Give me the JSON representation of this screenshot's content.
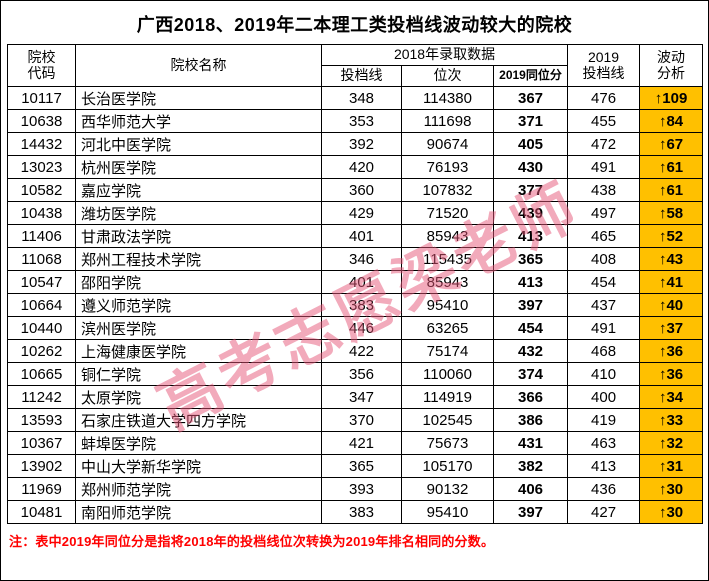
{
  "title": "广西2018、2019年二本理工类投档线波动较大的院校",
  "watermark": "高考志愿梁老师",
  "note": "注：表中2019年同位分是指将2018年的投档线位次转换为2019年排名相同的分数。",
  "colors": {
    "highlight": "#FFC000",
    "note_text": "#FF0000",
    "watermark": "#E65578",
    "border": "#000000"
  },
  "table": {
    "headers": {
      "code": "院校\n代码",
      "name": "院校名称",
      "group2018": "2018年录取数据",
      "line2018": "投档线",
      "rank": "位次",
      "equiv": "2019同位分",
      "line2019": "2019\n投档线",
      "fluct": "波动\n分析"
    },
    "rows": [
      {
        "code": "10117",
        "name": "长治医学院",
        "line2018": "348",
        "rank": "114380",
        "equiv": "367",
        "line2019": "476",
        "delta": "↑109"
      },
      {
        "code": "10638",
        "name": "西华师范大学",
        "line2018": "353",
        "rank": "111698",
        "equiv": "371",
        "line2019": "455",
        "delta": "↑84"
      },
      {
        "code": "14432",
        "name": "河北中医学院",
        "line2018": "392",
        "rank": "90674",
        "equiv": "405",
        "line2019": "472",
        "delta": "↑67"
      },
      {
        "code": "13023",
        "name": "杭州医学院",
        "line2018": "420",
        "rank": "76193",
        "equiv": "430",
        "line2019": "491",
        "delta": "↑61"
      },
      {
        "code": "10582",
        "name": "嘉应学院",
        "line2018": "360",
        "rank": "107832",
        "equiv": "377",
        "line2019": "438",
        "delta": "↑61"
      },
      {
        "code": "10438",
        "name": "潍坊医学院",
        "line2018": "429",
        "rank": "71520",
        "equiv": "439",
        "line2019": "497",
        "delta": "↑58"
      },
      {
        "code": "11406",
        "name": "甘肃政法学院",
        "line2018": "401",
        "rank": "85943",
        "equiv": "413",
        "line2019": "465",
        "delta": "↑52"
      },
      {
        "code": "11068",
        "name": "郑州工程技术学院",
        "line2018": "346",
        "rank": "115435",
        "equiv": "365",
        "line2019": "408",
        "delta": "↑43"
      },
      {
        "code": "10547",
        "name": "邵阳学院",
        "line2018": "401",
        "rank": "85943",
        "equiv": "413",
        "line2019": "454",
        "delta": "↑41"
      },
      {
        "code": "10664",
        "name": "遵义师范学院",
        "line2018": "383",
        "rank": "95410",
        "equiv": "397",
        "line2019": "437",
        "delta": "↑40"
      },
      {
        "code": "10440",
        "name": "滨州医学院",
        "line2018": "446",
        "rank": "63265",
        "equiv": "454",
        "line2019": "491",
        "delta": "↑37"
      },
      {
        "code": "10262",
        "name": "上海健康医学院",
        "line2018": "422",
        "rank": "75174",
        "equiv": "432",
        "line2019": "468",
        "delta": "↑36"
      },
      {
        "code": "10665",
        "name": "铜仁学院",
        "line2018": "356",
        "rank": "110060",
        "equiv": "374",
        "line2019": "410",
        "delta": "↑36"
      },
      {
        "code": "11242",
        "name": "太原学院",
        "line2018": "347",
        "rank": "114919",
        "equiv": "366",
        "line2019": "400",
        "delta": "↑34"
      },
      {
        "code": "13593",
        "name": "石家庄铁道大学四方学院",
        "line2018": "370",
        "rank": "102545",
        "equiv": "386",
        "line2019": "419",
        "delta": "↑33"
      },
      {
        "code": "10367",
        "name": "蚌埠医学院",
        "line2018": "421",
        "rank": "75673",
        "equiv": "431",
        "line2019": "463",
        "delta": "↑32"
      },
      {
        "code": "13902",
        "name": "中山大学新华学院",
        "line2018": "365",
        "rank": "105170",
        "equiv": "382",
        "line2019": "413",
        "delta": "↑31"
      },
      {
        "code": "11969",
        "name": "郑州师范学院",
        "line2018": "393",
        "rank": "90132",
        "equiv": "406",
        "line2019": "436",
        "delta": "↑30"
      },
      {
        "code": "10481",
        "name": "南阳师范学院",
        "line2018": "383",
        "rank": "95410",
        "equiv": "397",
        "line2019": "427",
        "delta": "↑30"
      }
    ]
  }
}
